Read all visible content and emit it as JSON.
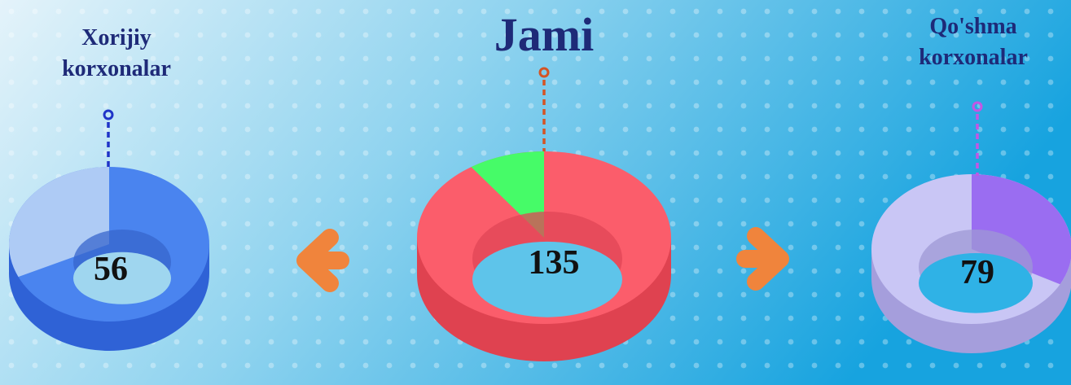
{
  "title": "Jami",
  "items": [
    {
      "label": "Xorijiy korxonalar",
      "value": 56
    },
    {
      "value": 135
    },
    {
      "label": "Qo'shma korxonalar",
      "value": 79
    }
  ]
}
